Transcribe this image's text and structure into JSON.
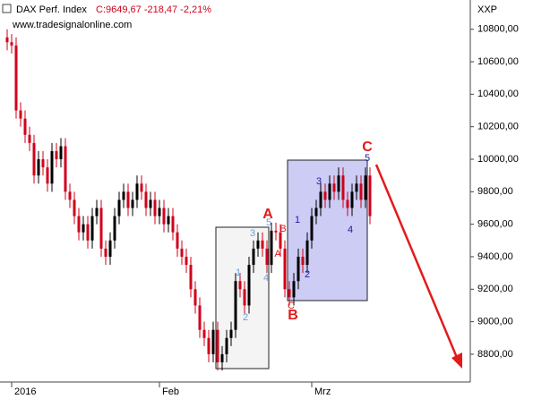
{
  "chart_data": {
    "type": "candlestick",
    "title": "DAX Perf. Index",
    "subtitle": "C:9649,67 -218,47 -2,21%",
    "source": "www.tradesignalonline.com",
    "axis_label": "XXP",
    "up_color": "#000000",
    "down_color": "#d0021b",
    "categories": [
      null,
      "2016",
      null,
      null,
      null,
      null,
      null,
      null,
      null,
      null,
      null,
      null,
      null,
      null,
      null,
      null,
      null,
      null,
      null,
      null,
      null,
      null,
      null,
      null,
      null,
      null,
      null,
      null,
      null,
      null,
      null,
      null,
      null,
      null,
      "Feb",
      null,
      null,
      null,
      null,
      null,
      null,
      null,
      null,
      null,
      null,
      null,
      null,
      null,
      null,
      null,
      null,
      null,
      null,
      null,
      null,
      null,
      null,
      null,
      null,
      null,
      null,
      null,
      null,
      null,
      null,
      null,
      null,
      null,
      "Mrz",
      null,
      null,
      null,
      null,
      null,
      null,
      null,
      null,
      null,
      null,
      null,
      null,
      null
    ],
    "open": [
      10750,
      10720,
      10700,
      10300,
      10250,
      10150,
      10100,
      9900,
      10000,
      9950,
      9850,
      10050,
      10000,
      10080,
      9800,
      9750,
      9650,
      9550,
      9600,
      9500,
      9650,
      9700,
      9450,
      9400,
      9500,
      9650,
      9750,
      9800,
      9700,
      9750,
      9850,
      9800,
      9700,
      9750,
      9650,
      9700,
      9600,
      9650,
      9550,
      9450,
      9400,
      9350,
      9200,
      9100,
      8950,
      8900,
      8800,
      8950,
      8750,
      8800,
      8900,
      8950,
      9250,
      9200,
      9100,
      9350,
      9450,
      9500,
      9450,
      9350,
      9560,
      9550,
      9450,
      9200,
      9150,
      9250,
      9400,
      9350,
      9500,
      9650,
      9700,
      9800,
      9750,
      9850,
      9800,
      9900,
      9750,
      9700,
      9800,
      9850,
      9750,
      9900
    ],
    "high": [
      10800,
      10770,
      10750,
      10350,
      10300,
      10200,
      10150,
      10050,
      10050,
      10000,
      10100,
      10100,
      10130,
      10130,
      9850,
      9800,
      9700,
      9650,
      9650,
      9700,
      9750,
      9750,
      9500,
      9550,
      9700,
      9800,
      9850,
      9850,
      9800,
      9900,
      9900,
      9850,
      9800,
      9800,
      9750,
      9750,
      9700,
      9700,
      9600,
      9500,
      9450,
      9400,
      9250,
      9150,
      9000,
      8950,
      9000,
      9000,
      8850,
      8950,
      9000,
      9300,
      9300,
      9250,
      9400,
      9500,
      9550,
      9550,
      9500,
      9610,
      9610,
      9600,
      9500,
      9250,
      9300,
      9450,
      9450,
      9550,
      9700,
      9750,
      9850,
      9850,
      9900,
      9900,
      9950,
      9950,
      9800,
      9850,
      9900,
      9900,
      9950,
      9950
    ],
    "low": [
      10670,
      10650,
      10250,
      10200,
      10100,
      10050,
      9850,
      9850,
      9900,
      9800,
      9800,
      9950,
      9950,
      9750,
      9700,
      9600,
      9500,
      9500,
      9450,
      9450,
      9600,
      9400,
      9350,
      9350,
      9450,
      9600,
      9700,
      9650,
      9650,
      9700,
      9750,
      9650,
      9650,
      9600,
      9600,
      9550,
      9550,
      9500,
      9400,
      9350,
      9300,
      9150,
      9050,
      8900,
      8850,
      8750,
      8750,
      8700,
      8700,
      8750,
      8850,
      8900,
      9150,
      9050,
      9050,
      9300,
      9400,
      9400,
      9300,
      9300,
      9500,
      9400,
      9150,
      9100,
      9100,
      9200,
      9300,
      9300,
      9450,
      9600,
      9650,
      9700,
      9700,
      9750,
      9750,
      9700,
      9650,
      9650,
      9750,
      9700,
      9700,
      9600
    ],
    "close": [
      10720,
      10700,
      10300,
      10250,
      10150,
      10100,
      9900,
      10000,
      9950,
      9850,
      10050,
      10000,
      10080,
      9800,
      9750,
      9650,
      9550,
      9600,
      9500,
      9650,
      9700,
      9450,
      9400,
      9500,
      9650,
      9750,
      9800,
      9700,
      9750,
      9850,
      9800,
      9700,
      9750,
      9650,
      9700,
      9600,
      9650,
      9550,
      9450,
      9400,
      9350,
      9200,
      9100,
      8950,
      8900,
      8800,
      8950,
      8750,
      8800,
      8900,
      8950,
      9250,
      9200,
      9100,
      9350,
      9450,
      9500,
      9450,
      9350,
      9560,
      9550,
      9450,
      9200,
      9150,
      9250,
      9400,
      9350,
      9500,
      9650,
      9700,
      9800,
      9750,
      9850,
      9800,
      9900,
      9750,
      9700,
      9800,
      9850,
      9750,
      9900,
      9650
    ],
    "ylim": [
      8640,
      10980
    ],
    "yticks": [
      {
        "value": 8800,
        "label": "8800,00"
      },
      {
        "value": 9000,
        "label": "9000,00"
      },
      {
        "value": 9200,
        "label": "9200,00"
      },
      {
        "value": 9400,
        "label": "9400,00"
      },
      {
        "value": 9600,
        "label": "9600,00"
      },
      {
        "value": 9800,
        "label": "9800,00"
      },
      {
        "value": 10000,
        "label": "10000,00"
      },
      {
        "value": 10200,
        "label": "10200,00"
      },
      {
        "value": 10400,
        "label": "10400,00"
      },
      {
        "value": 10600,
        "label": "10600,00"
      },
      {
        "value": 10800,
        "label": "10800,00"
      }
    ],
    "annotations": [
      {
        "text": "A",
        "color": "#e31a1a"
      },
      {
        "text": "B",
        "color": "#e31a1a"
      },
      {
        "text": "C",
        "color": "#e31a1a"
      },
      {
        "text": "1",
        "color": "#6a9fd8"
      },
      {
        "text": "2",
        "color": "#6a9fd8"
      },
      {
        "text": "3",
        "color": "#6a9fd8"
      },
      {
        "text": "4",
        "color": "#6a9fd8"
      },
      {
        "text": "5",
        "color": "#6a9fd8"
      },
      {
        "text": "A",
        "color": "#e31a1a"
      },
      {
        "text": "B",
        "color": "#e31a1a"
      },
      {
        "text": "C",
        "color": "#e31a1a"
      },
      {
        "text": "1",
        "color": "#1a1aa0"
      },
      {
        "text": "2",
        "color": "#1a1aa0"
      },
      {
        "text": "3",
        "color": "#1a1aa0"
      },
      {
        "text": "4",
        "color": "#1a1aa0"
      },
      {
        "text": "5",
        "color": "#1a1aa0"
      }
    ]
  }
}
